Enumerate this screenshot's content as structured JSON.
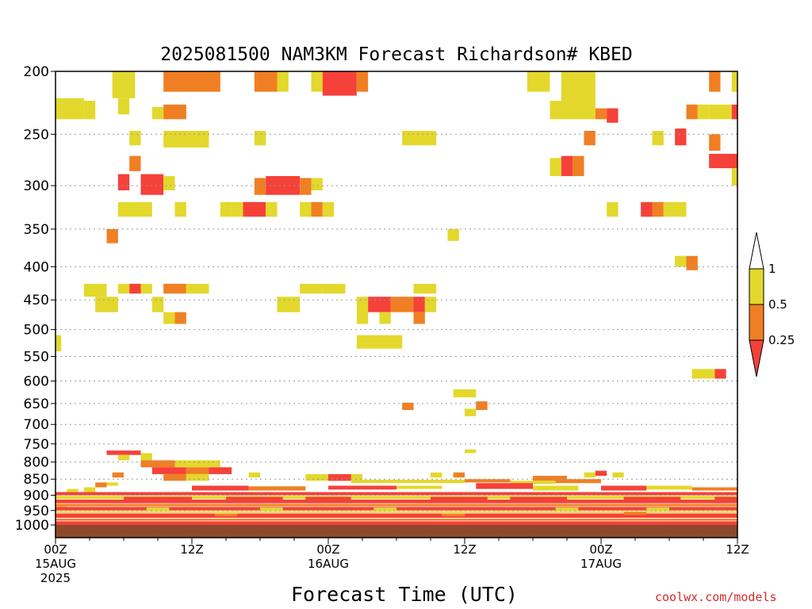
{
  "chart_data": {
    "type": "heatmap",
    "title": "2025081500 NAM3KM Forecast Richardson# KBED",
    "xlabel": "Forecast Time (UTC)",
    "ylabel": "",
    "x_range_hours": [
      0,
      60
    ],
    "y_range_hpa": [
      1000,
      200
    ],
    "y_scale": "log-pressure (inverted)",
    "grid": "dotted horizontal lines at pressure ticks",
    "y_ticks": [
      "200",
      "250",
      "300",
      "350",
      "400",
      "450",
      "500",
      "550",
      "600",
      "650",
      "700",
      "750",
      "800",
      "850",
      "900",
      "950",
      "1000"
    ],
    "x_ticks": [
      {
        "hour": 0,
        "lines": [
          "00Z",
          "15AUG",
          "2025"
        ]
      },
      {
        "hour": 12,
        "lines": [
          "12Z"
        ]
      },
      {
        "hour": 24,
        "lines": [
          "00Z",
          "16AUG"
        ]
      },
      {
        "hour": 36,
        "lines": [
          "12Z"
        ]
      },
      {
        "hour": 48,
        "lines": [
          "00Z",
          "17AUG"
        ]
      },
      {
        "hour": 60,
        "lines": [
          "12Z"
        ]
      }
    ],
    "colorbar": {
      "placement": "right",
      "levels": [
        "1",
        "0.5",
        "0.25"
      ],
      "bins": [
        {
          "range": "> 1",
          "color": "#ffffff"
        },
        {
          "range": "0.5 – 1",
          "color": "#e3d82c"
        },
        {
          "range": "0.25 – 0.5",
          "color": "#f07f23"
        },
        {
          "range": "< 0.25",
          "color": "#f5413a"
        }
      ]
    },
    "colors": {
      "yellow": "#e3d82c",
      "orange": "#f07f23",
      "red": "#f5413a",
      "ground": "#8b4a2b"
    },
    "cells": [
      [
        5,
        7,
        200,
        220,
        "Y"
      ],
      [
        9.5,
        14.5,
        200,
        215,
        "O"
      ],
      [
        17.5,
        19.5,
        200,
        215,
        "O"
      ],
      [
        19.5,
        20.5,
        200,
        215,
        "Y"
      ],
      [
        22.5,
        23.5,
        200,
        215,
        "Y"
      ],
      [
        23.5,
        26.5,
        200,
        218,
        "R"
      ],
      [
        26.5,
        27.5,
        200,
        215,
        "O"
      ],
      [
        41.5,
        43.5,
        200,
        215,
        "Y"
      ],
      [
        44.5,
        47.5,
        200,
        222,
        "Y"
      ],
      [
        57.5,
        58.5,
        200,
        215,
        "O"
      ],
      [
        59.5,
        60,
        200,
        215,
        "Y"
      ],
      [
        0,
        2.5,
        220,
        237,
        "Y"
      ],
      [
        2.5,
        3.5,
        222,
        237,
        "Y"
      ],
      [
        5.5,
        6.5,
        220,
        233,
        "Y"
      ],
      [
        8.5,
        9.5,
        227,
        237,
        "Y"
      ],
      [
        9.5,
        11.5,
        225,
        237,
        "O"
      ],
      [
        43.5,
        47.5,
        222,
        237,
        "Y"
      ],
      [
        47.5,
        48.5,
        228,
        237,
        "O"
      ],
      [
        48.5,
        49.5,
        228,
        240,
        "R"
      ],
      [
        55.5,
        56.5,
        225,
        237,
        "O"
      ],
      [
        56.5,
        57.5,
        225,
        237,
        "Y"
      ],
      [
        57.5,
        59.5,
        225,
        237,
        "Y"
      ],
      [
        59.5,
        60,
        225,
        237,
        "R"
      ],
      [
        6.5,
        7.5,
        247,
        260,
        "Y"
      ],
      [
        9.5,
        13.5,
        247,
        262,
        "Y"
      ],
      [
        17.5,
        18.5,
        247,
        260,
        "Y"
      ],
      [
        30.5,
        33.5,
        247,
        260,
        "Y"
      ],
      [
        46.5,
        47.5,
        247,
        260,
        "O"
      ],
      [
        52.5,
        53.5,
        247,
        260,
        "Y"
      ],
      [
        54.5,
        55.5,
        245,
        260,
        "R"
      ],
      [
        57.5,
        58.5,
        250,
        265,
        "O"
      ],
      [
        6.5,
        7.5,
        270,
        285,
        "O"
      ],
      [
        43.5,
        44.5,
        272,
        290,
        "Y"
      ],
      [
        44.5,
        45.5,
        270,
        290,
        "R"
      ],
      [
        45.5,
        46.5,
        270,
        290,
        "O"
      ],
      [
        57.5,
        60,
        268,
        282,
        "R"
      ],
      [
        59.5,
        60,
        282,
        300,
        "Y"
      ],
      [
        5.5,
        6.5,
        288,
        305,
        "R"
      ],
      [
        7.5,
        9.5,
        288,
        310,
        "R"
      ],
      [
        9.5,
        10.5,
        290,
        305,
        "Y"
      ],
      [
        17.5,
        18.5,
        292,
        310,
        "O"
      ],
      [
        18.5,
        21.5,
        290,
        310,
        "R"
      ],
      [
        21.5,
        22.5,
        292,
        310,
        "O"
      ],
      [
        22.5,
        23.5,
        292,
        305,
        "Y"
      ],
      [
        5.5,
        8.5,
        318,
        335,
        "Y"
      ],
      [
        10.5,
        11.5,
        318,
        335,
        "Y"
      ],
      [
        14.5,
        15.5,
        318,
        335,
        "Y"
      ],
      [
        15.5,
        16.5,
        318,
        335,
        "Y"
      ],
      [
        16.5,
        18.5,
        318,
        335,
        "R"
      ],
      [
        18.5,
        19.5,
        318,
        335,
        "Y"
      ],
      [
        21.5,
        22.5,
        318,
        335,
        "Y"
      ],
      [
        22.5,
        23.5,
        318,
        335,
        "O"
      ],
      [
        23.5,
        24.5,
        318,
        335,
        "Y"
      ],
      [
        48.5,
        49.5,
        318,
        335,
        "Y"
      ],
      [
        51.5,
        52.5,
        318,
        335,
        "R"
      ],
      [
        52.5,
        53.5,
        318,
        335,
        "O"
      ],
      [
        53.5,
        55.5,
        318,
        335,
        "Y"
      ],
      [
        4.5,
        5.5,
        350,
        368,
        "O"
      ],
      [
        34.5,
        35.5,
        350,
        365,
        "Y"
      ],
      [
        54.5,
        55.5,
        385,
        400,
        "Y"
      ],
      [
        55.5,
        56.5,
        385,
        405,
        "O"
      ],
      [
        2.5,
        4.5,
        425,
        445,
        "Y"
      ],
      [
        5.5,
        6.5,
        425,
        440,
        "Y"
      ],
      [
        6.5,
        7.5,
        425,
        440,
        "R"
      ],
      [
        7.5,
        8.5,
        425,
        440,
        "Y"
      ],
      [
        9.5,
        11.5,
        425,
        440,
        "O"
      ],
      [
        11.5,
        13.5,
        425,
        440,
        "Y"
      ],
      [
        21.5,
        23.5,
        425,
        440,
        "Y"
      ],
      [
        23.5,
        25.5,
        425,
        440,
        "Y"
      ],
      [
        31.5,
        33.5,
        425,
        440,
        "Y"
      ],
      [
        3.5,
        5.5,
        445,
        470,
        "Y"
      ],
      [
        8.5,
        9.5,
        445,
        470,
        "Y"
      ],
      [
        19.5,
        21.5,
        445,
        470,
        "Y"
      ],
      [
        26.5,
        27.5,
        445,
        490,
        "Y"
      ],
      [
        27.5,
        29.5,
        445,
        470,
        "R"
      ],
      [
        29.5,
        31.5,
        445,
        470,
        "O"
      ],
      [
        31.5,
        32.5,
        445,
        470,
        "R"
      ],
      [
        32.5,
        33.5,
        445,
        470,
        "Y"
      ],
      [
        9.5,
        10.5,
        470,
        490,
        "Y"
      ],
      [
        10.5,
        11.5,
        470,
        490,
        "O"
      ],
      [
        28.5,
        29.5,
        470,
        490,
        "Y"
      ],
      [
        31.5,
        32.5,
        470,
        490,
        "O"
      ],
      [
        0,
        0.5,
        510,
        540,
        "Y"
      ],
      [
        26.5,
        30.5,
        510,
        535,
        "Y"
      ],
      [
        56,
        58,
        575,
        595,
        "Y"
      ],
      [
        58,
        59,
        575,
        595,
        "R"
      ],
      [
        35,
        37,
        618,
        636,
        "Y"
      ],
      [
        30.5,
        31.5,
        648,
        665,
        "O"
      ],
      [
        37,
        38,
        645,
        665,
        "O"
      ],
      [
        36,
        37,
        662,
        680,
        "Y"
      ],
      [
        36,
        37,
        765,
        775,
        "Y"
      ],
      [
        4.5,
        7.5,
        768,
        780,
        "R"
      ],
      [
        5.5,
        6.5,
        780,
        795,
        "Y"
      ],
      [
        7.5,
        8.5,
        775,
        795,
        "Y"
      ],
      [
        7.5,
        10.5,
        795,
        815,
        "O"
      ],
      [
        10.5,
        14.5,
        795,
        815,
        "Y"
      ],
      [
        8.5,
        11.5,
        815,
        835,
        "R"
      ],
      [
        11.5,
        13.5,
        815,
        835,
        "O"
      ],
      [
        13.5,
        15.5,
        815,
        835,
        "R"
      ],
      [
        9.5,
        11.5,
        835,
        855,
        "O"
      ],
      [
        11.5,
        13.5,
        835,
        855,
        "Y"
      ],
      [
        5,
        6,
        830,
        845,
        "O"
      ],
      [
        17,
        18,
        830,
        845,
        "Y"
      ],
      [
        22,
        27,
        835,
        855,
        "Y"
      ],
      [
        24,
        26,
        835,
        855,
        "R"
      ],
      [
        33,
        34,
        830,
        845,
        "Y"
      ],
      [
        35,
        36,
        830,
        845,
        "O"
      ],
      [
        42,
        45,
        840,
        855,
        "O"
      ],
      [
        46.5,
        47.5,
        830,
        845,
        "Y"
      ],
      [
        47.5,
        48.5,
        825,
        840,
        "R"
      ],
      [
        49,
        50,
        830,
        845,
        "Y"
      ],
      [
        26,
        36,
        852,
        862,
        "Y"
      ],
      [
        36,
        40,
        850,
        860,
        "O"
      ],
      [
        40,
        44,
        855,
        865,
        "Y"
      ],
      [
        44,
        48,
        850,
        862,
        "O"
      ],
      [
        1,
        2,
        880,
        890,
        "Y"
      ],
      [
        2.5,
        3.5,
        875,
        890,
        "Y"
      ],
      [
        3.5,
        4.5,
        860,
        875,
        "O"
      ],
      [
        4.5,
        5.5,
        860,
        870,
        "Y"
      ],
      [
        12,
        17,
        870,
        885,
        "R"
      ],
      [
        17,
        22,
        872,
        885,
        "O"
      ],
      [
        24,
        30,
        870,
        882,
        "R"
      ],
      [
        30,
        34,
        870,
        880,
        "Y"
      ],
      [
        37,
        42,
        862,
        880,
        "R"
      ],
      [
        42,
        46,
        870,
        885,
        "Y"
      ],
      [
        48,
        52,
        870,
        885,
        "R"
      ],
      [
        52,
        56,
        870,
        882,
        "Y"
      ],
      [
        56,
        60,
        875,
        885,
        "O"
      ],
      [
        0,
        1,
        930,
        940,
        "Y"
      ],
      [
        0,
        60,
        890,
        900,
        "R"
      ],
      [
        0,
        60,
        902,
        912,
        "Y"
      ],
      [
        0,
        60,
        914,
        926,
        "R"
      ],
      [
        0,
        60,
        928,
        936,
        "O"
      ],
      [
        0,
        60,
        938,
        950,
        "R"
      ],
      [
        0,
        60,
        952,
        958,
        "Y"
      ],
      [
        0,
        60,
        960,
        975,
        "R"
      ],
      [
        0,
        60,
        978,
        985,
        "O"
      ],
      [
        0,
        60,
        987,
        1000,
        "R"
      ],
      [
        6,
        12,
        905,
        915,
        "R"
      ],
      [
        15,
        20,
        905,
        915,
        "R"
      ],
      [
        22,
        26,
        905,
        915,
        "R"
      ],
      [
        33,
        38,
        905,
        915,
        "R"
      ],
      [
        40,
        45,
        905,
        915,
        "R"
      ],
      [
        50,
        55,
        905,
        915,
        "R"
      ],
      [
        58,
        60,
        905,
        915,
        "R"
      ],
      [
        8,
        10,
        940,
        950,
        "Y"
      ],
      [
        18,
        20,
        940,
        950,
        "Y"
      ],
      [
        28,
        30,
        940,
        950,
        "Y"
      ],
      [
        44,
        46,
        940,
        950,
        "Y"
      ],
      [
        52,
        54,
        940,
        950,
        "Y"
      ],
      [
        14,
        16,
        960,
        970,
        "O"
      ],
      [
        34,
        36,
        960,
        970,
        "O"
      ],
      [
        50,
        52,
        955,
        965,
        "O"
      ]
    ]
  }
}
